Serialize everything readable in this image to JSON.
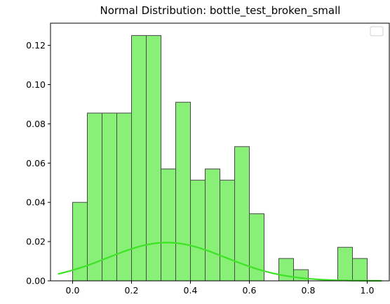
{
  "chart_data": {
    "type": "bar",
    "title": "Normal Distribution: bottle_test_broken_small",
    "xlabel": "",
    "ylabel": "",
    "xlim": [
      -0.075,
      1.075
    ],
    "ylim": [
      0,
      0.1313
    ],
    "xticks": [
      {
        "v": 0.0,
        "label": "0.0"
      },
      {
        "v": 0.2,
        "label": "0.2"
      },
      {
        "v": 0.4,
        "label": "0.4"
      },
      {
        "v": 0.6,
        "label": "0.6"
      },
      {
        "v": 0.8,
        "label": "0.8"
      },
      {
        "v": 1.0,
        "label": "1.0"
      }
    ],
    "yticks": [
      {
        "v": 0.0,
        "label": "0.00"
      },
      {
        "v": 0.02,
        "label": "0.02"
      },
      {
        "v": 0.04,
        "label": "0.04"
      },
      {
        "v": 0.06,
        "label": "0.06"
      },
      {
        "v": 0.08,
        "label": "0.08"
      },
      {
        "v": 0.1,
        "label": "0.10"
      },
      {
        "v": 0.12,
        "label": "0.12"
      }
    ],
    "histogram": {
      "bin_edges": [
        0.0,
        0.05,
        0.1,
        0.15,
        0.2,
        0.25,
        0.3,
        0.35,
        0.4,
        0.45,
        0.5,
        0.55,
        0.6,
        0.65,
        0.7,
        0.75,
        0.8,
        0.85,
        0.9,
        0.95,
        1.0
      ],
      "values": [
        0.04,
        0.0855,
        0.0855,
        0.0855,
        0.125,
        0.125,
        0.057,
        0.091,
        0.0513,
        0.057,
        0.0513,
        0.0684,
        0.0342,
        0.0,
        0.0114,
        0.0057,
        0.0,
        0.0,
        0.0171,
        0.0114
      ],
      "fill_color": "#88ef77",
      "edge_color": "#4a4a4a"
    },
    "normal_curve": {
      "mean": 0.32,
      "std": 0.2,
      "peak": 0.0195,
      "x_range": [
        -0.05,
        1.05
      ],
      "color": "#3ee226"
    },
    "legend": {
      "position": "upper right",
      "entries": []
    },
    "grid": false
  }
}
